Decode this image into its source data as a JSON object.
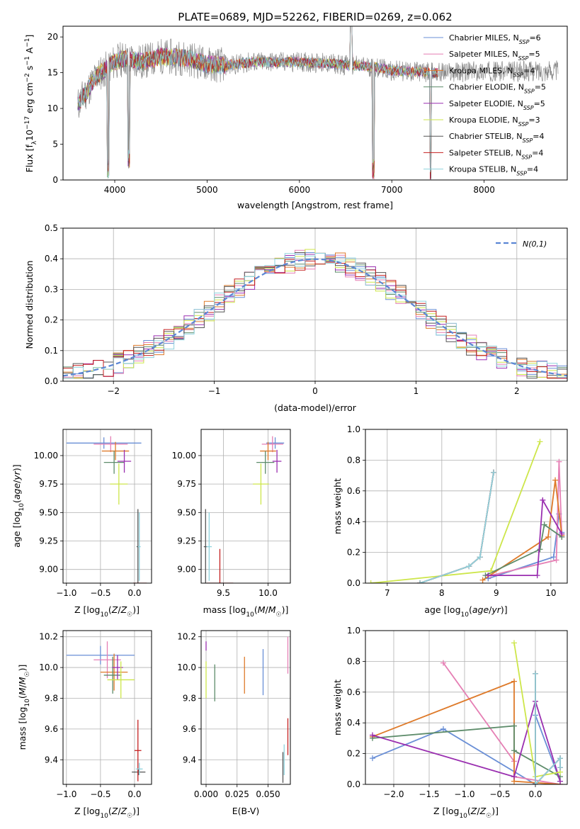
{
  "title": "PLATE=0689, MJD=52262, FIBERID=0269, z=0.062",
  "colors": {
    "chabrier_miles": "#6a8fd6",
    "salpeter_miles": "#e57fb4",
    "kroupa_miles": "#de7a2a",
    "chabrier_elodie": "#5d8c6a",
    "salpeter_elodie": "#9a2fb0",
    "kroupa_elodie": "#cde64a",
    "chabrier_stelib": "#555555",
    "salpeter_stelib": "#c41f1f",
    "kroupa_stelib": "#8fd3de",
    "spectrum": "#888888",
    "normal": "#5b86d4"
  },
  "chart_data": [
    {
      "id": "spectrum",
      "type": "line",
      "xlabel": "wavelength [Angstrom, rest frame]",
      "ylabel": "Flux [f_λ 10^-17 erg cm^-2 s^-1 A^-1]",
      "xlim": [
        3440,
        8900
      ],
      "ylim": [
        0,
        21.5
      ],
      "xticks": [
        4000,
        5000,
        6000,
        7000,
        8000
      ],
      "yticks": [
        0,
        5,
        10,
        15,
        20
      ],
      "legend_position": "upper right",
      "legend": [
        {
          "name": "Chabrier MILES, N",
          "sub": "SSP",
          "val": "=6",
          "color": "chabrier_miles"
        },
        {
          "name": "Salpeter MILES, N",
          "sub": "SSP",
          "val": "=5",
          "color": "salpeter_miles"
        },
        {
          "name": "Kroupa MILES, N",
          "sub": "SSP",
          "val": "=4",
          "color": "kroupa_miles"
        },
        {
          "name": "Chabrier ELODIE, N",
          "sub": "SSP",
          "val": "=5",
          "color": "chabrier_elodie"
        },
        {
          "name": "Salpeter ELODIE, N",
          "sub": "SSP",
          "val": "=5",
          "color": "salpeter_elodie"
        },
        {
          "name": "Kroupa ELODIE, N",
          "sub": "SSP",
          "val": "=3",
          "color": "kroupa_elodie"
        },
        {
          "name": "Chabrier STELIB, N",
          "sub": "SSP",
          "val": "=4",
          "color": "chabrier_stelib"
        },
        {
          "name": "Salpeter STELIB, N",
          "sub": "SSP",
          "val": "=4",
          "color": "salpeter_stelib"
        },
        {
          "name": "Kroupa STELIB, N",
          "sub": "SSP",
          "val": "=4",
          "color": "kroupa_stelib"
        }
      ],
      "continuum": [
        [
          3600,
          10.5
        ],
        [
          3700,
          12.5
        ],
        [
          3800,
          14.5
        ],
        [
          3900,
          15.5
        ],
        [
          4000,
          16.5
        ],
        [
          4100,
          17.0
        ],
        [
          4300,
          16.5
        ],
        [
          4500,
          17.3
        ],
        [
          4800,
          17.0
        ],
        [
          5000,
          16.2
        ],
        [
          5200,
          16.0
        ],
        [
          5500,
          16.5
        ],
        [
          6000,
          16.5
        ],
        [
          6300,
          16.3
        ],
        [
          6600,
          16.0
        ],
        [
          6800,
          15.8
        ],
        [
          7000,
          15.3
        ],
        [
          7500,
          15.0
        ],
        [
          8000,
          15.2
        ],
        [
          8500,
          15.2
        ],
        [
          8800,
          15.3
        ]
      ],
      "dips": [
        [
          3930,
          0.0
        ],
        [
          4150,
          1.5
        ],
        [
          6800,
          0.0
        ],
        [
          7420,
          0.0
        ]
      ]
    },
    {
      "id": "residuals",
      "type": "line",
      "xlabel": "(data-model)/error",
      "ylabel": "Normed distribution",
      "xlim": [
        -2.5,
        2.5
      ],
      "ylim": [
        0,
        0.5
      ],
      "xticks": [
        -2,
        -1,
        0,
        1,
        2
      ],
      "yticks": [
        0.0,
        0.1,
        0.2,
        0.3,
        0.4,
        0.5
      ],
      "grid": true,
      "legend_position": "upper right",
      "legend": [
        {
          "name": "N(0,1)",
          "color": "normal"
        }
      ],
      "bin_width": 0.1,
      "bin_start": -2.5
    },
    {
      "id": "age_vs_Z",
      "type": "scatter",
      "xlabel": "Z [log10(Z/Z☉)]",
      "ylabel": "age  [log10(age/yr)]",
      "xlim": [
        -1.05,
        0.25
      ],
      "ylim": [
        8.88,
        10.23
      ],
      "xticks": [
        -1.0,
        -0.5,
        0.0
      ],
      "yticks": [
        9.0,
        9.25,
        9.5,
        9.75,
        10.0
      ],
      "grid": true,
      "points": [
        {
          "x": -0.45,
          "y": 10.11,
          "xerr": 0.55,
          "yerr": 0.05,
          "color": "chabrier_miles"
        },
        {
          "x": -0.35,
          "y": 10.1,
          "xerr": 0.25,
          "yerr": 0.07,
          "color": "salpeter_miles"
        },
        {
          "x": -0.28,
          "y": 10.04,
          "xerr": 0.2,
          "yerr": 0.08,
          "color": "kroupa_miles"
        },
        {
          "x": -0.3,
          "y": 9.94,
          "xerr": 0.15,
          "yerr": 0.1,
          "color": "chabrier_elodie"
        },
        {
          "x": -0.15,
          "y": 9.95,
          "xerr": 0.1,
          "yerr": 0.1,
          "color": "salpeter_elodie"
        },
        {
          "x": -0.23,
          "y": 9.75,
          "xerr": 0.13,
          "yerr": 0.18,
          "color": "kroupa_elodie"
        },
        {
          "x": 0.05,
          "y": 9.2,
          "xerr": 0.02,
          "yerr": 0.33,
          "color": "chabrier_stelib"
        },
        {
          "x": 0.08,
          "y": 8.88,
          "xerr": 0.1,
          "yerr": 0.0,
          "color": "salpeter_stelib"
        },
        {
          "x": 0.07,
          "y": 9.2,
          "xerr": 0.02,
          "yerr": 0.3,
          "color": "kroupa_stelib"
        }
      ]
    },
    {
      "id": "age_vs_mass",
      "type": "scatter",
      "xlabel": "mass [log10(M/M☉)]",
      "ylabel": "",
      "xlim": [
        9.25,
        10.25
      ],
      "ylim": [
        8.88,
        10.23
      ],
      "xticks": [
        9.5,
        10.0
      ],
      "yticks": [
        9.0,
        9.25,
        9.5,
        9.75,
        10.0
      ],
      "grid": true,
      "points": [
        {
          "x": 10.08,
          "y": 10.11,
          "xerr": 0.1,
          "yerr": 0.05,
          "color": "chabrier_miles"
        },
        {
          "x": 10.05,
          "y": 10.1,
          "xerr": 0.12,
          "yerr": 0.07,
          "color": "salpeter_miles"
        },
        {
          "x": 10.0,
          "y": 10.04,
          "xerr": 0.09,
          "yerr": 0.08,
          "color": "kroupa_miles"
        },
        {
          "x": 9.97,
          "y": 9.94,
          "xerr": 0.1,
          "yerr": 0.1,
          "color": "chabrier_elodie"
        },
        {
          "x": 10.1,
          "y": 9.95,
          "xerr": 0.05,
          "yerr": 0.1,
          "color": "salpeter_elodie"
        },
        {
          "x": 9.92,
          "y": 9.75,
          "xerr": 0.09,
          "yerr": 0.18,
          "color": "kroupa_elodie"
        },
        {
          "x": 9.3,
          "y": 9.2,
          "xerr": 0.02,
          "yerr": 0.33,
          "color": "chabrier_stelib"
        },
        {
          "x": 9.46,
          "y": 8.88,
          "xerr": 0.15,
          "yerr": 0.3,
          "color": "salpeter_stelib"
        },
        {
          "x": 9.34,
          "y": 9.2,
          "xerr": 0.03,
          "yerr": 0.3,
          "color": "kroupa_stelib"
        }
      ]
    },
    {
      "id": "weight_vs_age",
      "type": "line",
      "xlabel": "age  [log10(age/yr)]",
      "ylabel": "mass weight",
      "xlim": [
        6.6,
        10.3
      ],
      "ylim": [
        0,
        1.0
      ],
      "xticks": [
        7,
        8,
        9,
        10
      ],
      "yticks": [
        0.0,
        0.2,
        0.4,
        0.6,
        0.8,
        1.0
      ],
      "grid": true,
      "series": [
        {
          "color": "chabrier_miles",
          "x": [
            8.85,
            10.05,
            10.15,
            10.2
          ],
          "y": [
            0.03,
            0.17,
            0.45,
            0.33
          ]
        },
        {
          "color": "salpeter_miles",
          "x": [
            8.9,
            10.1,
            10.15,
            10.2
          ],
          "y": [
            0.05,
            0.15,
            0.79,
            0.3
          ]
        },
        {
          "color": "kroupa_miles",
          "x": [
            8.75,
            9.95,
            10.08,
            10.2
          ],
          "y": [
            0.02,
            0.3,
            0.67,
            0.31
          ]
        },
        {
          "color": "chabrier_elodie",
          "x": [
            8.8,
            9.8,
            9.88,
            10.2
          ],
          "y": [
            0.05,
            0.22,
            0.38,
            0.3
          ]
        },
        {
          "color": "salpeter_elodie",
          "x": [
            8.85,
            9.75,
            9.85,
            10.2
          ],
          "y": [
            0.05,
            0.05,
            0.54,
            0.32
          ]
        },
        {
          "color": "kroupa_elodie",
          "x": [
            6.7,
            8.9,
            9.8
          ],
          "y": [
            0.0,
            0.08,
            0.92
          ]
        },
        {
          "color": "chabrier_stelib",
          "x": [
            7.6,
            8.5,
            8.7,
            8.95
          ],
          "y": [
            0.0,
            0.11,
            0.17,
            0.72
          ]
        },
        {
          "color": "salpeter_stelib",
          "x": [
            7.6,
            8.5,
            8.7,
            8.95
          ],
          "y": [
            0.0,
            0.11,
            0.17,
            0.72
          ]
        },
        {
          "color": "kroupa_stelib",
          "x": [
            7.6,
            8.5,
            8.7,
            8.95
          ],
          "y": [
            0.0,
            0.11,
            0.17,
            0.72
          ]
        }
      ]
    },
    {
      "id": "mass_vs_Z",
      "type": "scatter",
      "xlabel": "Z [log10(Z/Z☉)]",
      "ylabel": "mass [log10(M/M☉)]",
      "xlim": [
        -1.05,
        0.25
      ],
      "ylim": [
        9.24,
        10.24
      ],
      "xticks": [
        -1.0,
        -0.5,
        0.0
      ],
      "yticks": [
        9.4,
        9.6,
        9.8,
        10.0,
        10.2
      ],
      "grid": true,
      "points": [
        {
          "x": -0.5,
          "y": 10.08,
          "xerr": 0.5,
          "yerr": 0.06,
          "color": "chabrier_miles"
        },
        {
          "x": -0.4,
          "y": 10.05,
          "xerr": 0.2,
          "yerr": 0.12,
          "color": "salpeter_miles"
        },
        {
          "x": -0.3,
          "y": 9.97,
          "xerr": 0.2,
          "yerr": 0.12,
          "color": "kroupa_miles"
        },
        {
          "x": -0.32,
          "y": 9.95,
          "xerr": 0.13,
          "yerr": 0.12,
          "color": "chabrier_elodie"
        },
        {
          "x": -0.25,
          "y": 10.0,
          "xerr": 0.08,
          "yerr": 0.08,
          "color": "salpeter_elodie"
        },
        {
          "x": -0.2,
          "y": 9.92,
          "xerr": 0.2,
          "yerr": 0.12,
          "color": "kroupa_elodie"
        },
        {
          "x": 0.06,
          "y": 9.32,
          "xerr": 0.1,
          "yerr": 0.02,
          "color": "chabrier_stelib"
        },
        {
          "x": 0.05,
          "y": 9.46,
          "xerr": 0.05,
          "yerr": 0.2,
          "color": "salpeter_stelib"
        },
        {
          "x": 0.07,
          "y": 9.34,
          "xerr": 0.05,
          "yerr": 0.04,
          "color": "kroupa_stelib"
        }
      ]
    },
    {
      "id": "mass_vs_ebv",
      "type": "scatter",
      "xlabel": "E(B-V)",
      "ylabel": "",
      "xlim": [
        -0.004,
        0.068
      ],
      "ylim": [
        9.24,
        10.24
      ],
      "xticks": [
        0.0,
        0.025,
        0.05
      ],
      "xticklabels": [
        "0.000",
        "0.025",
        "0.050"
      ],
      "yticks": [
        9.4,
        9.6,
        9.8,
        10.0,
        10.2
      ],
      "grid": true,
      "points": [
        {
          "x": 0.046,
          "y": 9.97,
          "xerr": 0,
          "yerr": 0.15,
          "color": "chabrier_miles"
        },
        {
          "x": 0.066,
          "y": 10.08,
          "xerr": 0,
          "yerr": 0.12,
          "color": "salpeter_miles"
        },
        {
          "x": 0.031,
          "y": 9.95,
          "xerr": 0,
          "yerr": 0.12,
          "color": "kroupa_miles"
        },
        {
          "x": 0.007,
          "y": 9.9,
          "xerr": 0,
          "yerr": 0.12,
          "color": "chabrier_elodie"
        },
        {
          "x": 0.0,
          "y": 10.14,
          "xerr": 0,
          "yerr": 0.03,
          "color": "salpeter_elodie"
        },
        {
          "x": 0.0,
          "y": 9.92,
          "xerr": 0,
          "yerr": 0.12,
          "color": "kroupa_elodie"
        },
        {
          "x": 0.062,
          "y": 9.35,
          "xerr": 0,
          "yerr": 0.1,
          "color": "chabrier_stelib"
        },
        {
          "x": 0.066,
          "y": 9.55,
          "xerr": 0,
          "yerr": 0.12,
          "color": "salpeter_stelib"
        },
        {
          "x": 0.063,
          "y": 9.4,
          "xerr": 0,
          "yerr": 0.1,
          "color": "kroupa_stelib"
        }
      ]
    },
    {
      "id": "weight_vs_Z",
      "type": "line",
      "xlabel": "Z [log10(Z/Z☉)]",
      "ylabel": "mass weight",
      "xlim": [
        -2.4,
        0.45
      ],
      "ylim": [
        0,
        1.0
      ],
      "xticks": [
        -2.0,
        -1.5,
        -1.0,
        -0.5,
        0.0
      ],
      "yticks": [
        0.0,
        0.2,
        0.4,
        0.6,
        0.8,
        1.0
      ],
      "grid": true,
      "series": [
        {
          "color": "chabrier_miles",
          "x": [
            -2.3,
            -1.3,
            0.0,
            0.0,
            0.35
          ],
          "y": [
            0.17,
            0.36,
            0.0,
            0.45,
            0.02
          ]
        },
        {
          "color": "salpeter_miles",
          "x": [
            -1.3,
            -0.3,
            -0.3,
            0.35
          ],
          "y": [
            0.79,
            0.15,
            0.05,
            0.0
          ]
        },
        {
          "color": "kroupa_miles",
          "x": [
            -2.3,
            -0.3,
            -0.3,
            0.35
          ],
          "y": [
            0.31,
            0.67,
            0.02,
            0.0
          ]
        },
        {
          "color": "chabrier_elodie",
          "x": [
            -2.3,
            -0.3,
            -0.3,
            0.35
          ],
          "y": [
            0.3,
            0.38,
            0.22,
            0.05
          ]
        },
        {
          "color": "salpeter_elodie",
          "x": [
            -2.3,
            -0.3,
            0.0,
            0.35
          ],
          "y": [
            0.32,
            0.05,
            0.54,
            0.02
          ]
        },
        {
          "color": "kroupa_elodie",
          "x": [
            -0.3,
            0.0,
            0.35
          ],
          "y": [
            0.92,
            0.05,
            0.08
          ]
        },
        {
          "color": "chabrier_stelib",
          "x": [
            0.0,
            0.0,
            0.35,
            0.35
          ],
          "y": [
            0.72,
            0.0,
            0.17,
            0.11
          ]
        },
        {
          "color": "salpeter_stelib",
          "x": [
            0.0,
            0.0,
            0.35,
            0.35
          ],
          "y": [
            0.72,
            0.0,
            0.17,
            0.11
          ]
        },
        {
          "color": "kroupa_stelib",
          "x": [
            0.0,
            0.0,
            0.35,
            0.35
          ],
          "y": [
            0.72,
            0.0,
            0.17,
            0.11
          ]
        }
      ]
    }
  ]
}
